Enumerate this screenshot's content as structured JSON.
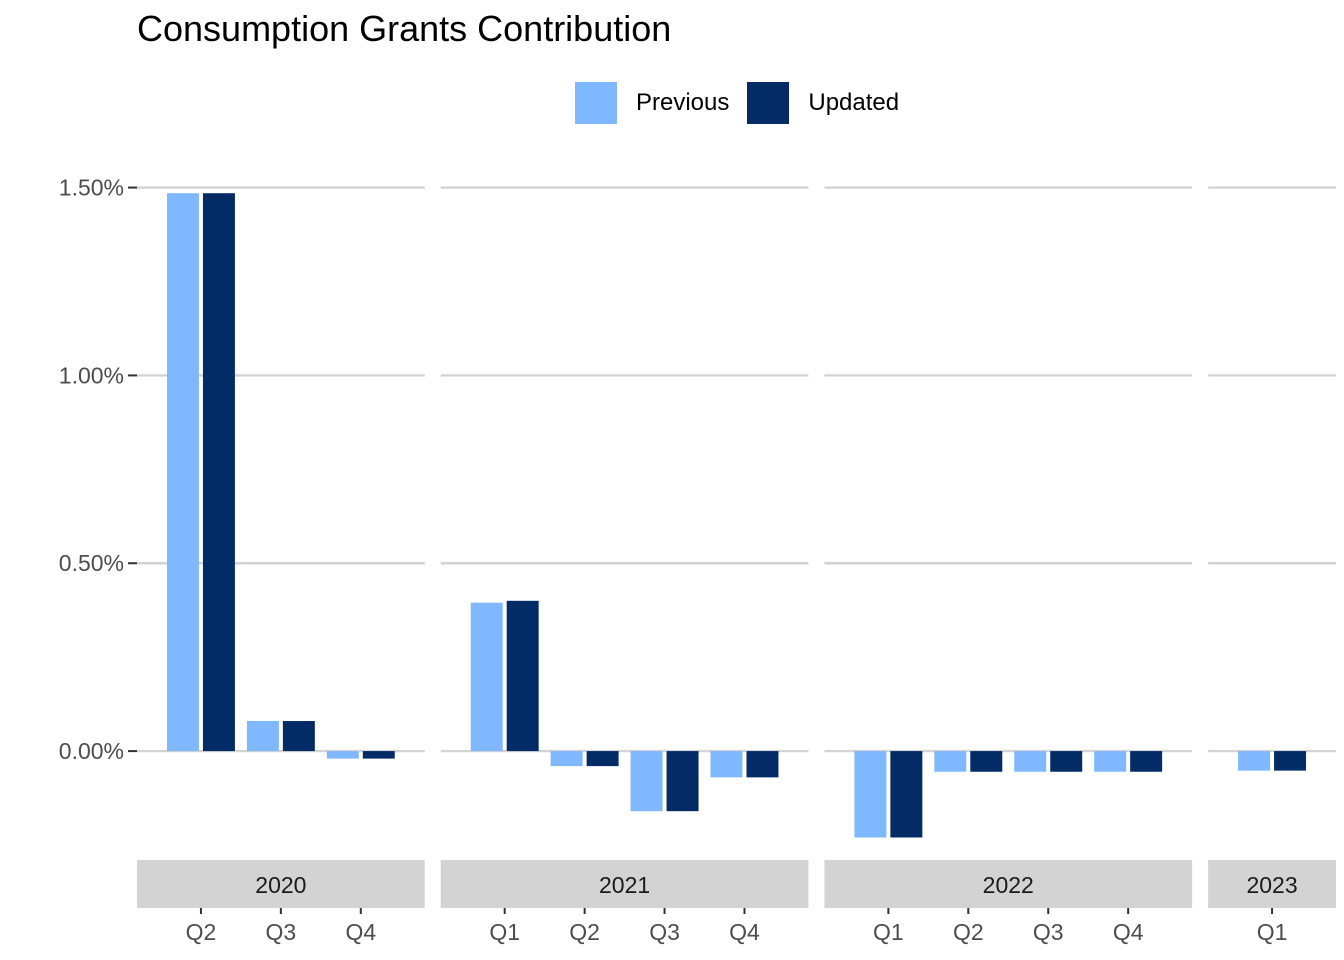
{
  "chart_data": {
    "type": "bar",
    "title": "Consumption Grants Contribution",
    "xlabel": "",
    "ylabel": "",
    "ylim": [
      -0.0025,
      0.016
    ],
    "yticks": [
      0,
      0.005,
      0.01,
      0.015
    ],
    "ytick_labels": [
      "0.00%",
      "0.50%",
      "1.00%",
      "1.50%"
    ],
    "legend_position": "top",
    "grid": true,
    "facets": [
      {
        "label": "2020",
        "categories": [
          "Q2",
          "Q3",
          "Q4"
        ]
      },
      {
        "label": "2021",
        "categories": [
          "Q1",
          "Q2",
          "Q3",
          "Q4"
        ]
      },
      {
        "label": "2022",
        "categories": [
          "Q1",
          "Q2",
          "Q3",
          "Q4"
        ]
      },
      {
        "label": "2023",
        "categories": [
          "Q1"
        ]
      }
    ],
    "series": [
      {
        "name": "Previous",
        "color": "#7fb8ff",
        "values": [
          0.01485,
          0.0008,
          -0.0002,
          0.00395,
          -0.0004,
          -0.0016,
          -0.0007,
          -0.0023,
          -0.00055,
          -0.00055,
          -0.00055,
          -0.00052
        ]
      },
      {
        "name": "Updated",
        "color": "#032b66",
        "values": [
          0.01485,
          0.0008,
          -0.0002,
          0.004,
          -0.0004,
          -0.0016,
          -0.0007,
          -0.0023,
          -0.00055,
          -0.00055,
          -0.00055,
          -0.00052
        ]
      }
    ],
    "colors": {
      "strip_fill": "#d3d3d3",
      "grid": "#d3d3d3",
      "axis_text": "#4d4d4d"
    }
  }
}
